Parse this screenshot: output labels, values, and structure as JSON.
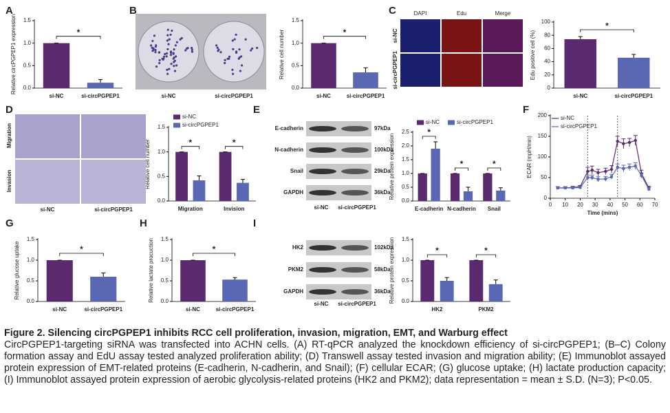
{
  "chart_data": [
    {
      "panel": "A",
      "type": "bar",
      "ylabel": "Relative circPGPEP1 expression",
      "categories": [
        "si-NC",
        "si-circPGPEP1"
      ],
      "values": [
        1.0,
        0.12
      ],
      "errors": [
        0,
        0.07
      ],
      "colors": [
        "#5b2a6e",
        "#5a67b2"
      ],
      "annotation": "*",
      "ylim": [
        0,
        1.5
      ],
      "yticks": [
        {
          "value": 0,
          "label": "0.0"
        },
        {
          "value": 0.5,
          "label": "0.5"
        },
        {
          "value": 1,
          "label": "1.0"
        },
        {
          "value": 1.5,
          "label": "1.5"
        }
      ]
    },
    {
      "panel": "B",
      "type": "bar",
      "ylabel": "Relative cell number",
      "categories": [
        "si-NC",
        "si-circPGPEP1"
      ],
      "values": [
        1.0,
        0.35
      ],
      "errors": [
        0,
        0.1
      ],
      "colors": [
        "#5b2a6e",
        "#5a67b2"
      ],
      "annotation": "*",
      "ylim": [
        0,
        1.5
      ],
      "yticks": [
        {
          "value": 0,
          "label": "0.0"
        },
        {
          "value": 0.5,
          "label": "0.5"
        },
        {
          "value": 1,
          "label": "1.0"
        },
        {
          "value": 1.5,
          "label": "1.5"
        }
      ]
    },
    {
      "panel": "C",
      "type": "bar",
      "ylabel": "Edu positive cell (%)",
      "categories": [
        "si-NC",
        "si-circPGPEP1"
      ],
      "values": [
        74,
        46
      ],
      "errors": [
        4,
        5
      ],
      "colors": [
        "#5b2a6e",
        "#5a67b2"
      ],
      "annotation": "*",
      "ylim": [
        0,
        100
      ],
      "yticks": [
        0,
        20,
        40,
        60,
        80,
        100
      ]
    },
    {
      "panel": "D",
      "type": "grouped_bar",
      "ylabel": "Relative cell number",
      "categories": [
        "Migration",
        "Invision"
      ],
      "series": [
        {
          "name": "si-NC",
          "color": "#5b2a6e",
          "values": [
            1.0,
            1.0
          ],
          "errors": [
            0,
            0
          ]
        },
        {
          "name": "si-circPGPEP1",
          "color": "#5a67b2",
          "values": [
            0.42,
            0.37
          ],
          "errors": [
            0.09,
            0.07
          ]
        }
      ],
      "annotation": "*",
      "legend_orientation": "vertical",
      "ylim": [
        0,
        1.5
      ],
      "yticks": [
        {
          "value": 0,
          "label": "0.0"
        },
        {
          "value": 0.5,
          "label": "0.5"
        },
        {
          "value": 1,
          "label": "1.0"
        },
        {
          "value": 1.5,
          "label": "1.5"
        }
      ]
    },
    {
      "panel": "E",
      "type": "grouped_bar",
      "ylabel": "Relative protein expression",
      "categories": [
        "E-cadherin",
        "N-cadherin",
        "Snail"
      ],
      "series": [
        {
          "name": "si-NC",
          "color": "#5b2a6e",
          "values": [
            1.0,
            1.0,
            1.0
          ],
          "errors": [
            0,
            0,
            0
          ]
        },
        {
          "name": "si-circPGPEP1",
          "color": "#5a67b2",
          "values": [
            1.9,
            0.35,
            0.38
          ],
          "errors": [
            0.25,
            0.15,
            0.1
          ]
        }
      ],
      "annotation": "*",
      "legend_orientation": "horizontal",
      "ylim": [
        0,
        2.5
      ],
      "yticks": [
        {
          "value": 0,
          "label": "0.0"
        },
        {
          "value": 0.5,
          "label": "0.5"
        },
        {
          "value": 1,
          "label": "1.0"
        },
        {
          "value": 1.5,
          "label": "1.5"
        },
        {
          "value": 2,
          "label": "2.0"
        },
        {
          "value": 2.5,
          "label": "2.5"
        }
      ]
    },
    {
      "panel": "F",
      "type": "line",
      "ylabel": "ECAR (mpH/min)",
      "xlabel": "Time (mins)",
      "x": [
        5,
        10,
        15,
        20,
        25,
        28,
        32,
        37,
        41,
        45,
        49,
        53,
        57,
        61,
        66
      ],
      "series": [
        {
          "name": "si-NC",
          "color": "#5b2a6e",
          "marker": "circle",
          "values": [
            25,
            25,
            26,
            28,
            65,
            68,
            62,
            65,
            70,
            138,
            132,
            135,
            140,
            60,
            25
          ],
          "errors": [
            3,
            3,
            3,
            3,
            10,
            10,
            8,
            8,
            9,
            12,
            12,
            10,
            12,
            8,
            4
          ]
        },
        {
          "name": "si-circPGPEP1",
          "color": "#5a67b2",
          "marker": "square",
          "values": [
            25,
            25,
            25,
            26,
            50,
            50,
            46,
            47,
            52,
            75,
            72,
            75,
            78,
            55,
            22
          ],
          "errors": [
            3,
            3,
            3,
            3,
            6,
            6,
            6,
            6,
            6,
            8,
            8,
            8,
            8,
            6,
            4
          ]
        }
      ],
      "vlines": [
        25,
        45
      ],
      "legend_orientation": "vertical",
      "xlim": [
        0,
        70
      ],
      "xticks": [
        0,
        10,
        20,
        30,
        40,
        50,
        60,
        70
      ],
      "ylim": [
        0,
        200
      ],
      "yticks": [
        0,
        50,
        100,
        150,
        200
      ]
    },
    {
      "panel": "G",
      "type": "bar",
      "ylabel": "Relative glucose uptake",
      "categories": [
        "si-NC",
        "si-circPGPEP1"
      ],
      "values": [
        1.0,
        0.6
      ],
      "errors": [
        0,
        0.09
      ],
      "colors": [
        "#5b2a6e",
        "#5a67b2"
      ],
      "annotation": "*",
      "ylim": [
        0,
        1.5
      ],
      "yticks": [
        {
          "value": 0,
          "label": "0.0"
        },
        {
          "value": 0.5,
          "label": "0.5"
        },
        {
          "value": 1,
          "label": "1.0"
        },
        {
          "value": 1.5,
          "label": "1.5"
        }
      ]
    },
    {
      "panel": "H",
      "type": "bar",
      "ylabel": "Relative lactate procuction",
      "categories": [
        "si-NC",
        "si-circPGPEP1"
      ],
      "values": [
        1.0,
        0.53
      ],
      "errors": [
        0,
        0.05
      ],
      "colors": [
        "#5b2a6e",
        "#5a67b2"
      ],
      "annotation": "*",
      "ylim": [
        0,
        1.5
      ],
      "yticks": [
        {
          "value": 0,
          "label": "0.0"
        },
        {
          "value": 0.5,
          "label": "0.5"
        },
        {
          "value": 1,
          "label": "1.0"
        },
        {
          "value": 1.5,
          "label": "1.5"
        }
      ]
    },
    {
      "panel": "I",
      "type": "grouped_bar",
      "ylabel": "Relative protein expression",
      "categories": [
        "HK2",
        "PKM2"
      ],
      "series": [
        {
          "name": "si-NC",
          "color": "#5b2a6e",
          "values": [
            1.0,
            1.0
          ],
          "errors": [
            0,
            0
          ]
        },
        {
          "name": "si-circPGPEP1",
          "color": "#5a67b2",
          "values": [
            0.5,
            0.42
          ],
          "errors": [
            0.08,
            0.1
          ]
        }
      ],
      "annotation": "*",
      "ylim": [
        0,
        1.5
      ],
      "yticks": [
        {
          "value": 0,
          "label": "0.0"
        },
        {
          "value": 0.5,
          "label": "0.5"
        },
        {
          "value": 1,
          "label": "1.0"
        },
        {
          "value": 1.5,
          "label": "1.5"
        }
      ]
    }
  ],
  "images": [
    {
      "kind": "plates",
      "labels": [
        "si-NC",
        "si-circPGPEP1"
      ]
    },
    {
      "kind": "micro",
      "columns": [
        "DAPI",
        "Edu",
        "Merge"
      ],
      "rows": [
        "si-NC",
        "si-circPGPEP1"
      ]
    },
    {
      "kind": "transwell",
      "rows": [
        "Migration",
        "Invasion"
      ],
      "columns": [
        "si-NC",
        "si-circPGPEP1"
      ]
    },
    {
      "kind": "blot",
      "bands": [
        {
          "name": "E-cadherin",
          "size": "97kDa"
        },
        {
          "name": "N-cadherin",
          "size": "100kDa"
        },
        {
          "name": "Snail",
          "size": "29kDa"
        },
        {
          "name": "GAPDH",
          "size": "36kDa"
        }
      ],
      "lanes": [
        "si-NC",
        "si-circPGPEP1"
      ]
    },
    {
      "kind": "blot",
      "bands": [
        {
          "name": "HK2",
          "size": "102kDa"
        },
        {
          "name": "PKM2",
          "size": "58kDa"
        },
        {
          "name": "GAPDH",
          "size": "36kDa"
        }
      ],
      "lanes": [
        "si-NC",
        "si-circPGPEP1"
      ]
    }
  ],
  "caption": {
    "title": "Figure 2. Silencing circPGPEP1 inhibits RCC cell proliferation, invasion, migration, EMT, and Warburg effect",
    "body": "CircPGPEP1-targeting siRNA was transfected into ACHN cells. (A) RT-qPCR analyzed the knockdown efficiency of si-circPGPEP1; (B–C) Colony formation assay and EdU assay tested analyzed proliferation ability; (D) Transwell assay tested invasion and migration ability; (E) Immunoblot assayed protein expression of EMT-related proteins (E-cadherin, N-cadherin, and Snail); (F) cellular ECAR; (G) glucose uptake; (H) lactate production capacity; (I) Immunoblot assayed protein expression of aerobic glycolysis-related proteins (HK2 and PKM2); data representation = mean ± S.D. (N=3); P<0.05."
  }
}
